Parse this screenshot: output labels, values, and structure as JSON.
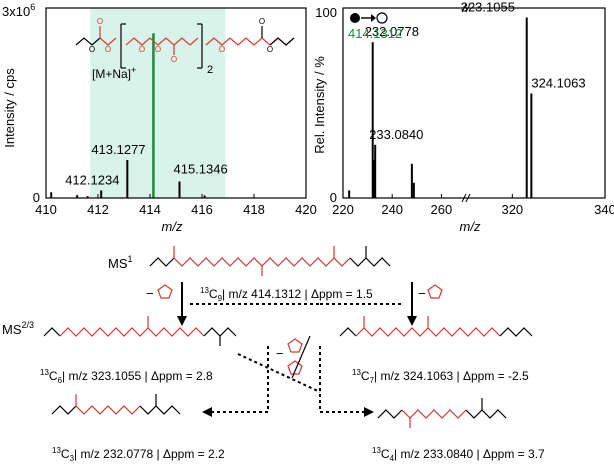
{
  "chart_data": [
    {
      "type": "bar",
      "panel": "left",
      "ylabel": "Intensity / cps",
      "xlabel": "m/z",
      "y_multiplier_label": "3x10",
      "y_multiplier_exponent": "6",
      "xlim": [
        410,
        420
      ],
      "ylim": [
        0,
        3000000
      ],
      "x_ticks": [
        "410",
        "412",
        "414",
        "416",
        "418",
        "420"
      ],
      "highlight_range": [
        411.7,
        416.9
      ],
      "adduct_label": "[M+Na]",
      "adduct_charge": "+",
      "repeat_subscript": "2",
      "peaks": [
        {
          "x": 410.2,
          "y": 90000,
          "color": "#000000",
          "label": ""
        },
        {
          "x": 411.2,
          "y": 45000,
          "color": "#000000",
          "label": ""
        },
        {
          "x": 411.6,
          "y": 30000,
          "color": "#000000",
          "label": ""
        },
        {
          "x": 412.1234,
          "y": 120000,
          "color": "#000000",
          "label": "412.1234"
        },
        {
          "x": 413.1277,
          "y": 600000,
          "color": "#000000",
          "label": "413.1277"
        },
        {
          "x": 414.1312,
          "y": 2600000,
          "color": "#1a8a3c",
          "label": "414.1312"
        },
        {
          "x": 415.1346,
          "y": 260000,
          "color": "#000000",
          "label": "415.1346"
        },
        {
          "x": 416.1,
          "y": 40000,
          "color": "#000000",
          "label": ""
        }
      ]
    },
    {
      "type": "bar",
      "panel": "right",
      "ylabel": "Rel. Intensity / %",
      "xlabel": "m/z",
      "xlim": [
        220,
        340
      ],
      "ylim": [
        0,
        100
      ],
      "y_ticks": [
        "100",
        "0"
      ],
      "x_ticks": [
        "220",
        "240",
        "260",
        "320",
        "340"
      ],
      "axis_break": true,
      "precursor_label": "414.1312",
      "peaks": [
        {
          "x": 222.5,
          "y": 4,
          "label": ""
        },
        {
          "x": 232.0778,
          "y": 82,
          "label": "232.0778"
        },
        {
          "x": 232.8,
          "y": 20,
          "label": ""
        },
        {
          "x": 233.084,
          "y": 28,
          "label": "233.0840"
        },
        {
          "x": 248.0,
          "y": 18,
          "label": ""
        },
        {
          "x": 248.8,
          "y": 8,
          "label": ""
        },
        {
          "x": 323.1055,
          "y": 95,
          "label": "323.1055"
        },
        {
          "x": 324.1063,
          "y": 55,
          "label": "324.1063"
        }
      ]
    }
  ],
  "scheme": {
    "ms1_label": "MS",
    "ms1_sup": "1",
    "ms23_label": "MS",
    "ms23_sup": "2/3",
    "precursor": {
      "iso": "13",
      "elem": "C",
      "sub": "9",
      "sep": "| m/z 414.1312 | Δppm = 1.5"
    },
    "fragments": [
      {
        "iso": "13",
        "elem": "C",
        "sub": "6",
        "sep": "| m/z 323.1055 | Δppm = 2.8"
      },
      {
        "iso": "13",
        "elem": "C",
        "sub": "7",
        "sep": "| m/z 324.1063 | Δppm = -2.5"
      },
      {
        "iso": "13",
        "elem": "C",
        "sub": "3",
        "sep": "| m/z 232.0778 | Δppm = 2.2"
      },
      {
        "iso": "13",
        "elem": "C",
        "sub": "4",
        "sep": "| m/z 233.0840 | Δppm = 3.7"
      }
    ],
    "minus_sign": "−",
    "colors": {
      "chain": "#d23a32",
      "end": "#000000",
      "green": "#1a8a3c",
      "highlight": "#d9f2ea"
    }
  }
}
